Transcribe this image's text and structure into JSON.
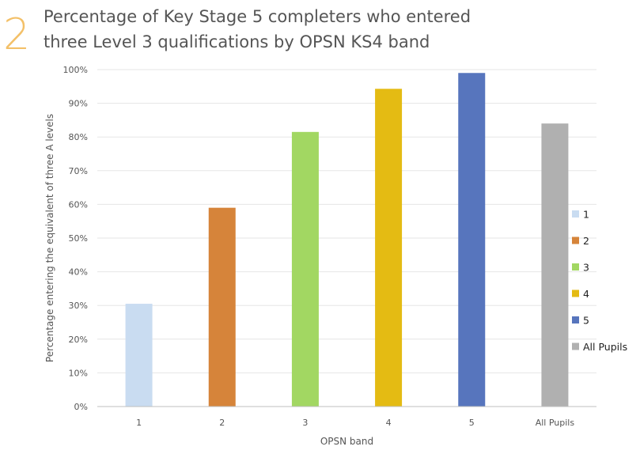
{
  "figure_number": "2",
  "chart_data": {
    "type": "bar",
    "title_lines": [
      "Percentage of Key Stage 5 completers who entered",
      "three Level 3 qualifications by OPSN KS4 band"
    ],
    "xlabel": "OPSN band",
    "ylabel": "Percentage entering the equivalent of three A levels",
    "categories": [
      "1",
      "2",
      "3",
      "4",
      "5",
      "All Pupils"
    ],
    "values": [
      30.5,
      59,
      81.5,
      94.3,
      99,
      84
    ],
    "colors": [
      "#c9dcf1",
      "#d6843a",
      "#a2d762",
      "#e4bb13",
      "#5775bd",
      "#b0b0b0"
    ],
    "ylim": [
      0,
      100
    ],
    "yticks": [
      "0%",
      "10%",
      "20%",
      "30%",
      "40%",
      "50%",
      "60%",
      "70%",
      "80%",
      "90%",
      "100%"
    ],
    "grid": true,
    "legend": {
      "position": "right",
      "entries": [
        "1",
        "2",
        "3",
        "4",
        "5",
        "All Pupils"
      ]
    }
  }
}
